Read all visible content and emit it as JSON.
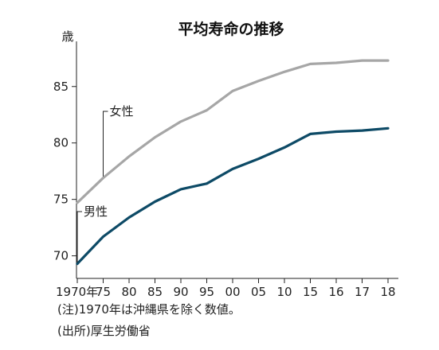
{
  "notes": {
    "note1": "(注)1970年は沖縄県を除く数値。",
    "note2": "(出所)厚生労働省"
  },
  "chart_data": {
    "type": "line",
    "title": "平均寿命の推移",
    "ylabel": "歳",
    "xlabel": "",
    "ylim": [
      68,
      89
    ],
    "yticks": [
      70,
      75,
      80,
      85
    ],
    "x_tick_labels": [
      "1970年",
      "75",
      "80",
      "85",
      "90",
      "95",
      "00",
      "05",
      "10",
      "15",
      "16",
      "17",
      "18"
    ],
    "grid": false,
    "series": [
      {
        "name": "女性",
        "color": "#a6a6a6",
        "values": [
          74.7,
          76.9,
          78.8,
          80.5,
          81.9,
          82.9,
          84.6,
          85.5,
          86.3,
          87.0,
          87.1,
          87.3,
          87.3
        ]
      },
      {
        "name": "男性",
        "color": "#0d4a66",
        "values": [
          69.3,
          71.7,
          73.4,
          74.8,
          75.9,
          76.4,
          77.7,
          78.6,
          79.6,
          80.8,
          81.0,
          81.1,
          81.3
        ]
      }
    ]
  }
}
